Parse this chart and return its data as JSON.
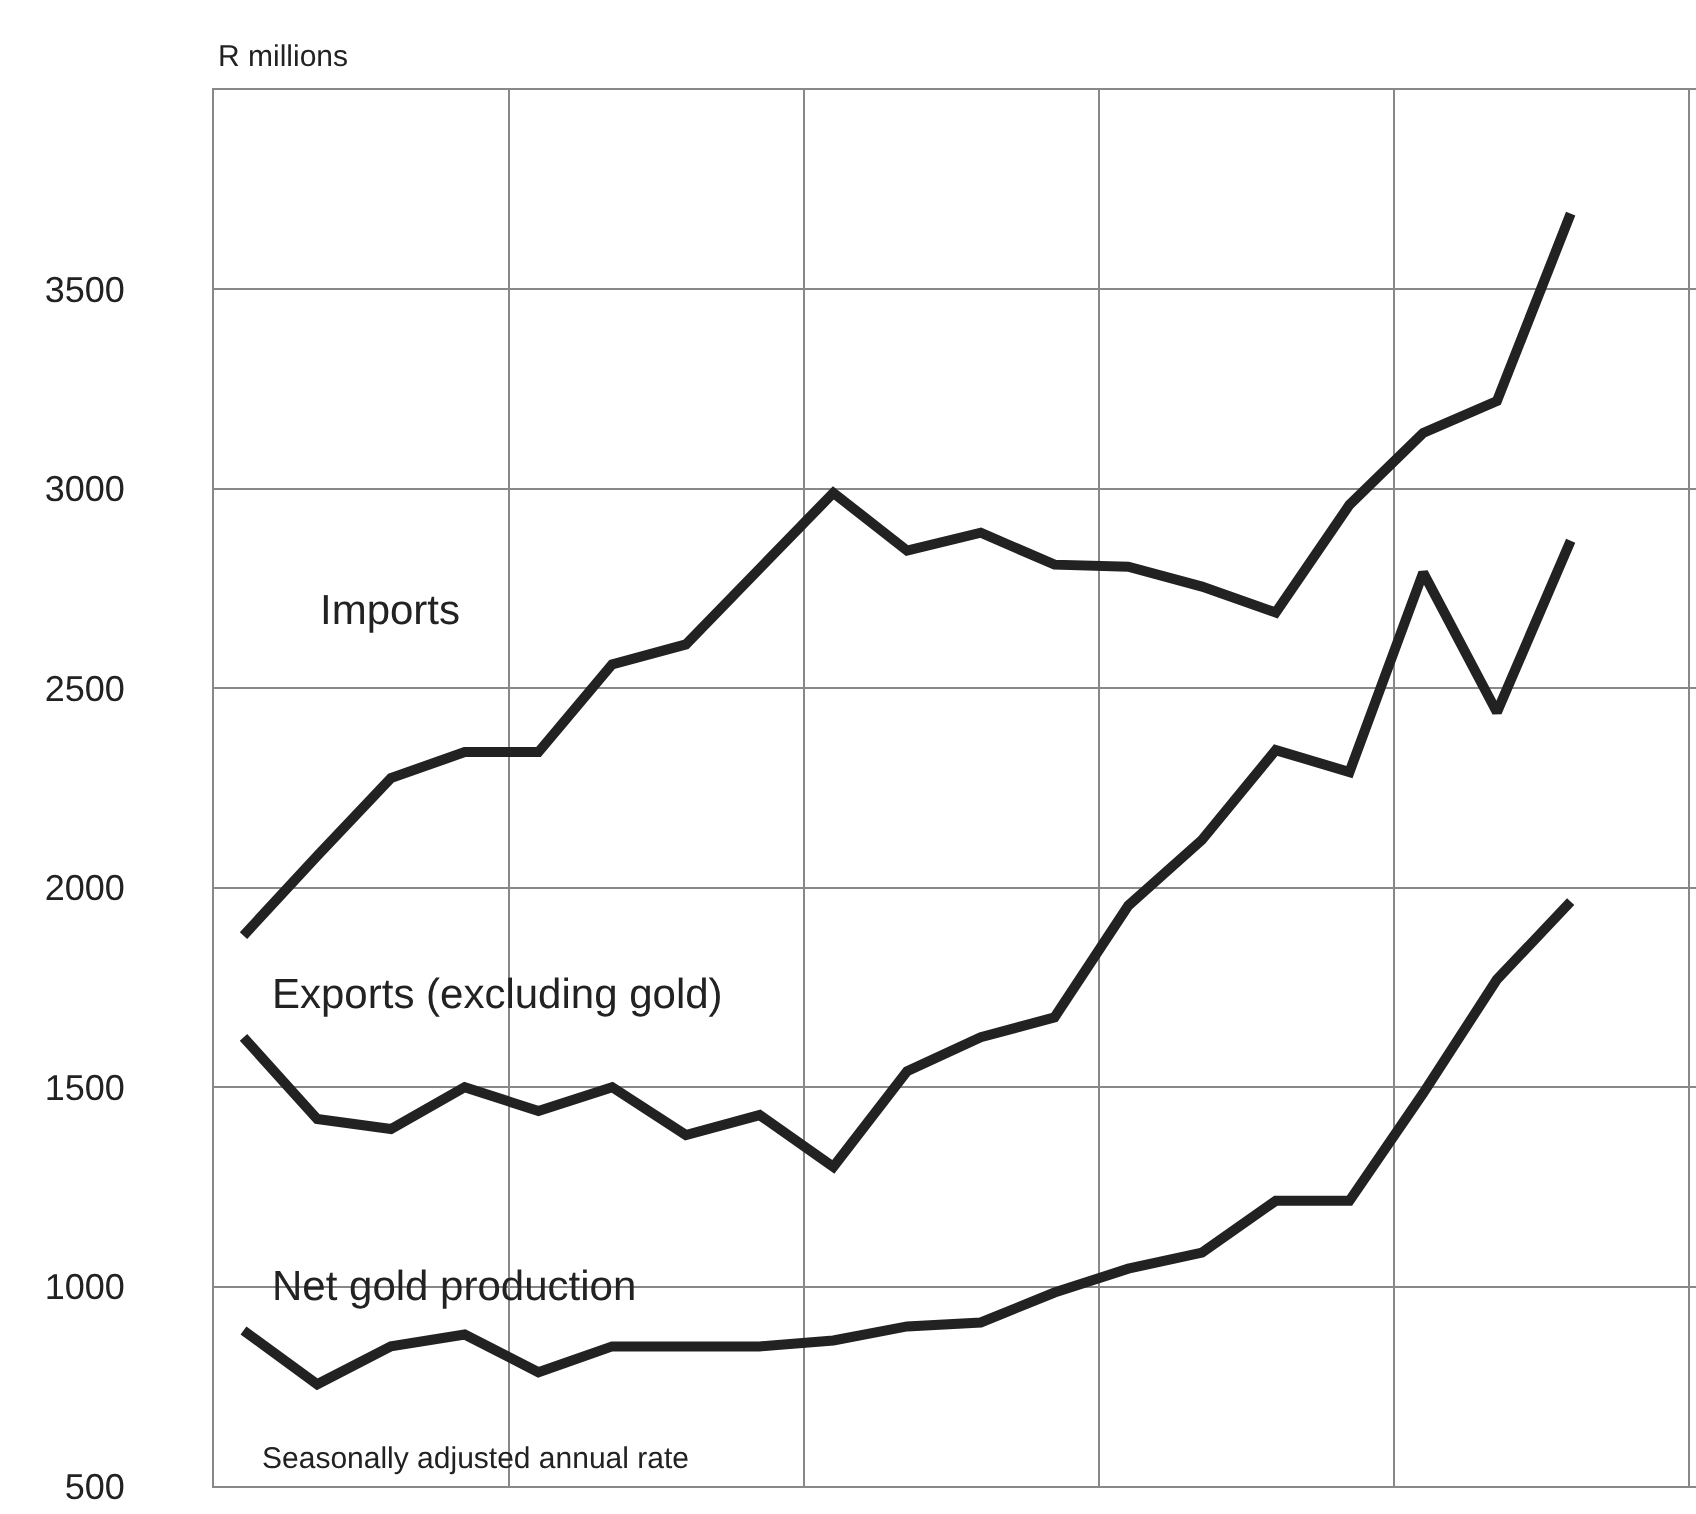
{
  "chart_data": {
    "type": "line",
    "ylabel": "R millions",
    "categories": [
      null,
      null,
      null,
      null,
      null,
      null,
      null,
      null,
      null,
      null,
      null,
      null,
      null,
      null,
      null,
      null,
      null,
      null,
      null
    ],
    "series": [
      {
        "name": "Imports",
        "color": "#222222",
        "values": [
          1880,
          2080,
          2275,
          2340,
          2340,
          2560,
          2610,
          2800,
          2990,
          2845,
          2890,
          2810,
          2805,
          2755,
          2690,
          2960,
          3140,
          3220,
          3690
        ]
      },
      {
        "name": "Exports (excluding gold)",
        "color": "#222222",
        "values": [
          1625,
          1420,
          1395,
          1500,
          1440,
          1500,
          1380,
          1430,
          1300,
          1540,
          1625,
          1675,
          1955,
          2120,
          2345,
          2290,
          2790,
          2440,
          2870
        ]
      },
      {
        "name": "Net gold production",
        "color": "#222222",
        "values": [
          890,
          755,
          850,
          880,
          785,
          850,
          850,
          850,
          865,
          900,
          910,
          985,
          1045,
          1085,
          1215,
          1215,
          1485,
          1770,
          1965
        ]
      }
    ],
    "ylim": [
      500,
      4000
    ],
    "yticks": [
      500,
      1000,
      1500,
      2000,
      2500,
      3000,
      3500,
      {
        "value": 4000,
        "label": null
      }
    ],
    "grid": true,
    "legend": false,
    "marker": "none",
    "line_style": "solid",
    "annotations": [
      "Seasonally adjusted annual rate"
    ]
  }
}
